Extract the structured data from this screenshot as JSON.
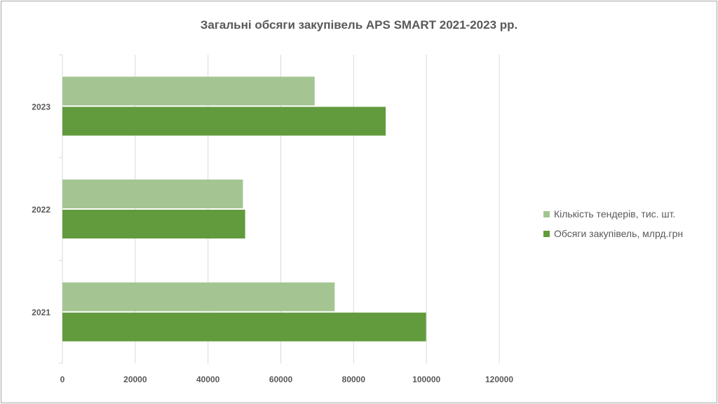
{
  "chart_data": {
    "type": "bar",
    "orientation": "horizontal",
    "title": "Загальні обсяги закупівель APS SMART 2021-2023 рр.",
    "categories": [
      "2021",
      "2022",
      "2023"
    ],
    "series": [
      {
        "name": "Кількість тендерів, тис. шт.",
        "values": [
          74800,
          49600,
          69300
        ],
        "color": "#a4c592"
      },
      {
        "name": "Обсяги закупівель, млрд.грн",
        "values": [
          99900,
          50200,
          88800
        ],
        "color": "#629a3e"
      }
    ],
    "xlim": [
      0,
      120000
    ],
    "xticks": [
      "0",
      "20000",
      "40000",
      "60000",
      "80000",
      "100000",
      "120000"
    ],
    "grid": true,
    "legend": "right"
  }
}
